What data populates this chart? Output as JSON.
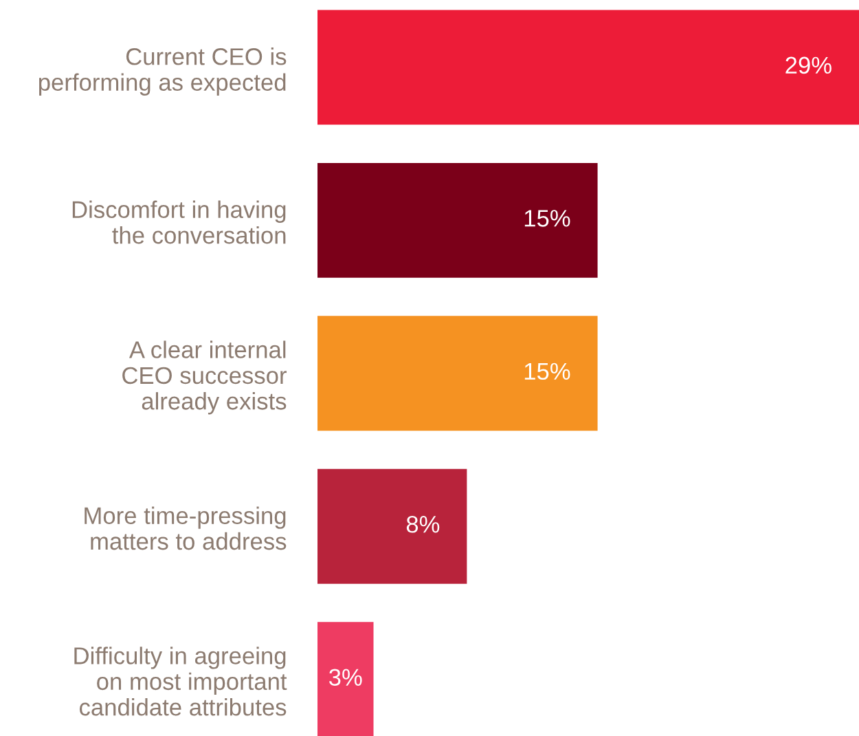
{
  "chart_data": {
    "type": "bar",
    "orientation": "horizontal",
    "categories": [
      "Current CEO is\nperforming as expected",
      "Discomfort in having\nthe conversation",
      "A clear internal\nCEO successor\nalready exists",
      "More time-pressing\nmatters to address",
      "Difficulty in agreeing\non most important\ncandidate attributes"
    ],
    "values": [
      29,
      15,
      15,
      8,
      3
    ],
    "value_labels": [
      "29%",
      "15%",
      "15%",
      "8%",
      "3%"
    ],
    "colors": [
      "#ed1c38",
      "#7b0019",
      "#f59222",
      "#b8233b",
      "#ee3c62"
    ],
    "tick_labels": "y",
    "grid": false,
    "legend": false
  }
}
